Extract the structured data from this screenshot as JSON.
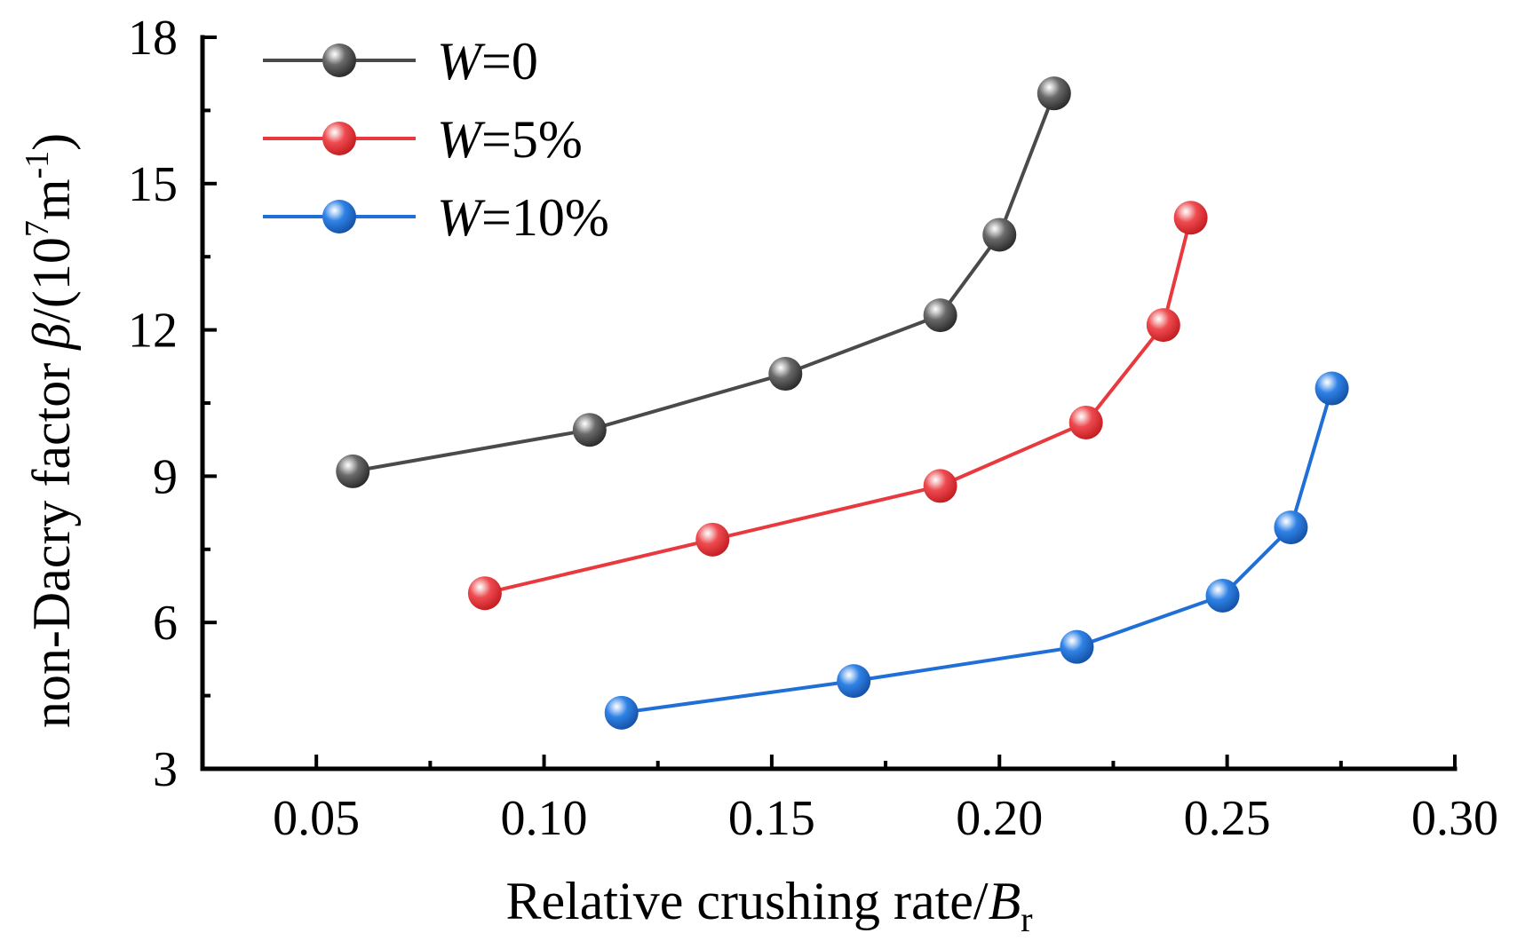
{
  "chart_data": {
    "type": "line",
    "title": "",
    "xlabel": {
      "main": "Relative crushing rate/",
      "var": "B",
      "sub": "r"
    },
    "ylabel": {
      "main": "non-Dacry factor ",
      "var": "β",
      "unit_open": "/(10",
      "unit_exp1": "7",
      "unit_mid": "m",
      "unit_exp2": "-1",
      "unit_close": ")"
    },
    "xlim": [
      0.025,
      0.3
    ],
    "ylim": [
      3,
      18
    ],
    "xticks": [
      0.05,
      0.1,
      0.15,
      0.2,
      0.25,
      0.3
    ],
    "xtick_labels": [
      "0.05",
      "0.10",
      "0.15",
      "0.20",
      "0.25",
      "0.30"
    ],
    "yticks": [
      3,
      6,
      9,
      12,
      15,
      18
    ],
    "ytick_labels": [
      "3",
      "6",
      "9",
      "12",
      "15",
      "18"
    ],
    "legend_position": "top-left",
    "series": [
      {
        "name": "W=0",
        "legend_var": "W",
        "legend_rest": "=0",
        "color": "#4a4a4a",
        "x": [
          0.058,
          0.11,
          0.153,
          0.187,
          0.2,
          0.212
        ],
        "y": [
          9.1,
          9.95,
          11.1,
          12.3,
          13.95,
          16.85
        ]
      },
      {
        "name": "W=5%",
        "legend_var": "W",
        "legend_rest": "=5%",
        "color": "#e8393e",
        "x": [
          0.087,
          0.137,
          0.187,
          0.219,
          0.236,
          0.242
        ],
        "y": [
          6.6,
          7.7,
          8.8,
          10.1,
          12.1,
          14.3
        ]
      },
      {
        "name": "W=10%",
        "legend_var": "W",
        "legend_rest": "=10%",
        "color": "#1f6fd6",
        "x": [
          0.117,
          0.168,
          0.217,
          0.249,
          0.264,
          0.273
        ],
        "y": [
          4.15,
          4.8,
          5.5,
          6.55,
          7.95,
          10.8
        ]
      }
    ]
  }
}
